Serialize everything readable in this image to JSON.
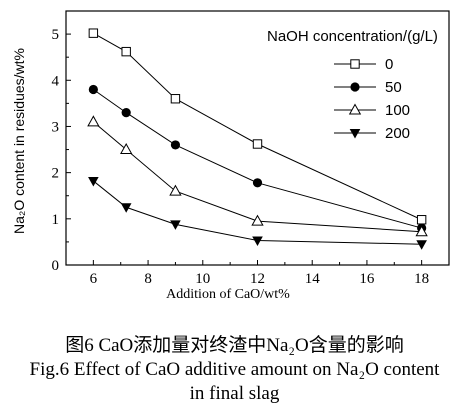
{
  "chart_data": {
    "type": "line",
    "xlabel": "Addition of CaO/wt%",
    "ylabel": "Na₂O content in residues/wt%",
    "xlim": [
      5,
      19
    ],
    "ylim": [
      0,
      5.5
    ],
    "xticks": [
      6,
      8,
      10,
      12,
      14,
      16,
      18
    ],
    "yticks": [
      0,
      1,
      2,
      3,
      4,
      5
    ],
    "x": [
      6,
      7.2,
      9,
      12,
      18
    ],
    "legend_title": "NaOH concentration/(g/L)",
    "legend_position": "top-right",
    "series": [
      {
        "name": "0",
        "marker": "open-square",
        "values": [
          5.02,
          4.62,
          3.6,
          2.62,
          0.98
        ]
      },
      {
        "name": "50",
        "marker": "filled-circle",
        "values": [
          3.8,
          3.3,
          2.6,
          1.78,
          0.8
        ]
      },
      {
        "name": "100",
        "marker": "open-triangle-up",
        "values": [
          3.1,
          2.5,
          1.6,
          0.95,
          0.72
        ]
      },
      {
        "name": "200",
        "marker": "filled-triangle-down",
        "values": [
          1.82,
          1.25,
          0.88,
          0.53,
          0.45
        ]
      }
    ]
  },
  "caption": {
    "cn": "图6   CaO添加量对终渣中Na₂O含量的影响",
    "en_line1": "Fig.6    Effect of CaO additive amount on Na₂O content",
    "en_line2": "in final slag"
  }
}
